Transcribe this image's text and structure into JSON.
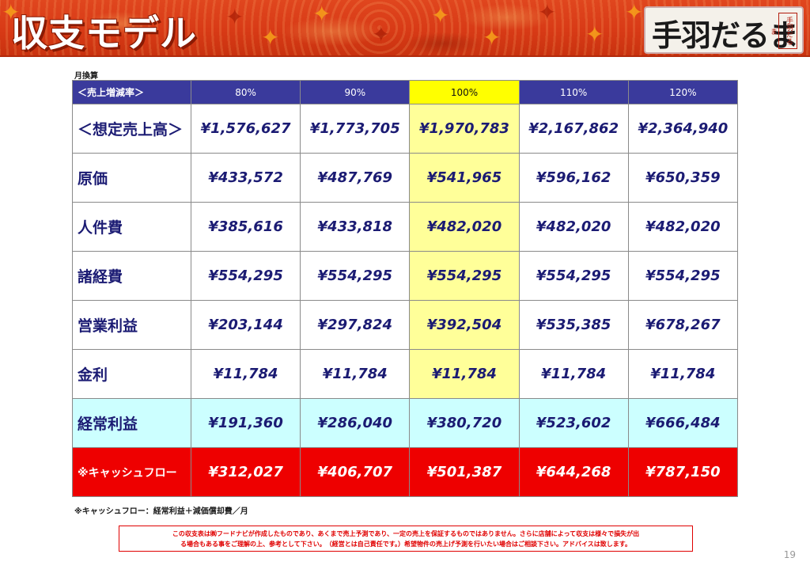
{
  "header": {
    "title": "収支モデル",
    "logo_text": "手羽だるま",
    "logo_seal": "手羽だるま"
  },
  "table_note": "月換算",
  "table": {
    "header_label": "＜売上増減率＞",
    "columns": [
      "80%",
      "90%",
      "100%",
      "110%",
      "120%"
    ],
    "highlight_column": "100%",
    "rows": [
      {
        "label": "＜想定売上高＞",
        "values": [
          "¥1,576,627",
          "¥1,773,705",
          "¥1,970,783",
          "¥2,167,862",
          "¥2,364,940"
        ]
      },
      {
        "label": "原価",
        "values": [
          "¥433,572",
          "¥487,769",
          "¥541,965",
          "¥596,162",
          "¥650,359"
        ]
      },
      {
        "label": "人件費",
        "values": [
          "¥385,616",
          "¥433,818",
          "¥482,020",
          "¥482,020",
          "¥482,020"
        ]
      },
      {
        "label": "諸経費",
        "values": [
          "¥554,295",
          "¥554,295",
          "¥554,295",
          "¥554,295",
          "¥554,295"
        ]
      },
      {
        "label": "営業利益",
        "values": [
          "¥203,144",
          "¥297,824",
          "¥392,504",
          "¥535,385",
          "¥678,267"
        ]
      },
      {
        "label": "金利",
        "values": [
          "¥11,784",
          "¥11,784",
          "¥11,784",
          "¥11,784",
          "¥11,784"
        ]
      },
      {
        "label": "経常利益",
        "values": [
          "¥191,360",
          "¥286,040",
          "¥380,720",
          "¥523,602",
          "¥666,484"
        ]
      },
      {
        "label": "※キャッシュフロー",
        "values": [
          "¥312,027",
          "¥406,707",
          "¥501,387",
          "¥644,268",
          "¥787,150"
        ]
      }
    ]
  },
  "footnote": "※キャッシュフロー：経常利益＋減価償却費／月",
  "disclaimer": {
    "line1": "この収支表は㈱フードナビが作成したものであり、あくまで売上予測であり、一定の売上を保証するものではありません。さらに店舗によって収支は様々で損失が出",
    "line2": "る場合もある事をご理解の上、参考として下さい。　（経営とは自己責任です。）希望物件の売上げ予測を行いたい場合はご相談下さい。アドバイスは致します。"
  },
  "page_number": "19",
  "colors": {
    "banner": "#d83a16",
    "table_header": "#3a3a9c",
    "highlight_header": "#ffff00",
    "highlight_cell": "#ffff99",
    "keijo_row": "#ccffff",
    "cash_row": "#ee0000",
    "value_text": "#1b1b73"
  }
}
